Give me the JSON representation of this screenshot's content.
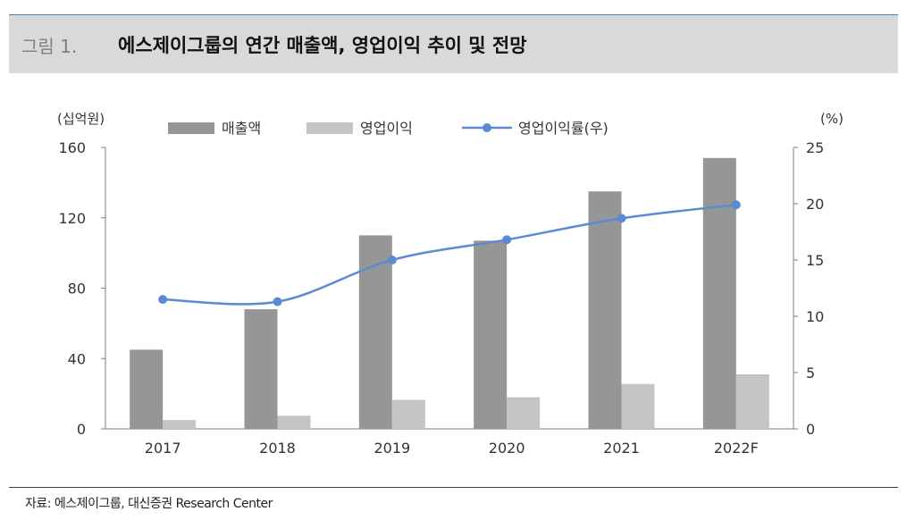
{
  "figure": {
    "number": "그림 1.",
    "title": "에스제이그룹의 연간 매출액, 영업이익 추이 및 전망",
    "source": "자료: 에스제이그룹, 대신증권 Research Center"
  },
  "chart_data": {
    "type": "bar",
    "categories": [
      "2017",
      "2018",
      "2019",
      "2020",
      "2021",
      "2022F"
    ],
    "series": [
      {
        "name": "매출액",
        "kind": "bar",
        "axis": "left",
        "color": "#969696",
        "values": [
          45,
          68,
          110,
          107,
          135,
          154
        ]
      },
      {
        "name": "영업이익",
        "kind": "bar",
        "axis": "left",
        "color": "#c4c4c4",
        "values": [
          5,
          7.5,
          16.5,
          18,
          25.5,
          31
        ]
      },
      {
        "name": "영업이익률(우)",
        "kind": "line",
        "axis": "right",
        "color": "#5b8ad0",
        "values": [
          11.5,
          11.3,
          15,
          16.8,
          18.7,
          19.9
        ]
      }
    ],
    "y_left": {
      "label": "(십억원)",
      "min": 0,
      "max": 160,
      "ticks": [
        0,
        40,
        80,
        120,
        160
      ]
    },
    "y_right": {
      "label": "(%)",
      "min": 0,
      "max": 25,
      "ticks": [
        0,
        5,
        10,
        15,
        20,
        25
      ]
    },
    "legend": "top"
  }
}
